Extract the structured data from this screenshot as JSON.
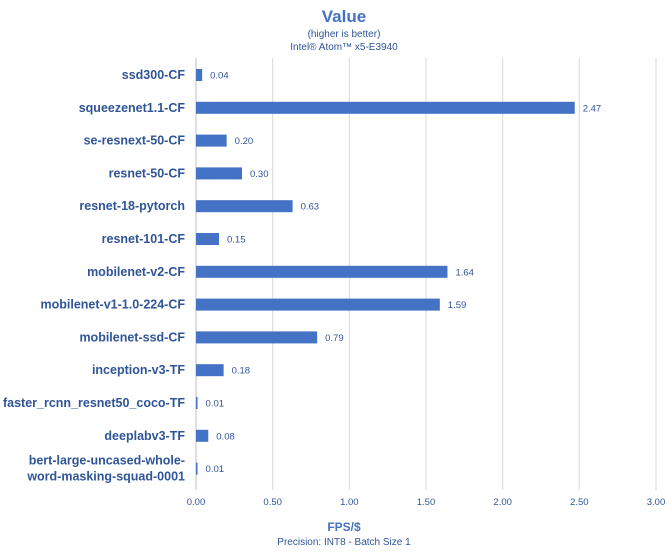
{
  "chart_data": {
    "type": "bar",
    "orientation": "horizontal",
    "title": "Value",
    "subtitle_lines": [
      "(higher is better)",
      "Intel® Atom™ x5-E3940"
    ],
    "xlabel": "FPS/$",
    "xlabel_sub": "Precision: INT8 - Batch Size 1",
    "xlim": [
      0,
      3
    ],
    "xticks": [
      "0.00",
      "0.50",
      "1.00",
      "1.50",
      "2.00",
      "2.50",
      "3.00"
    ],
    "grid": "vertical",
    "categories": [
      [
        "ssd300-CF"
      ],
      [
        "squeezenet1.1-CF"
      ],
      [
        "se-resnext-50-CF"
      ],
      [
        "resnet-50-CF"
      ],
      [
        "resnet-18-pytorch"
      ],
      [
        "resnet-101-CF"
      ],
      [
        "mobilenet-v2-CF"
      ],
      [
        "mobilenet-v1-1.0-224-CF"
      ],
      [
        "mobilenet-ssd-CF"
      ],
      [
        "inception-v3-TF"
      ],
      [
        "faster_rcnn_resnet50_coco-TF"
      ],
      [
        "deeplabv3-TF"
      ],
      [
        "bert-large-uncased-whole-",
        "word-masking-squad-0001"
      ]
    ],
    "values": [
      0.04,
      2.47,
      0.2,
      0.3,
      0.63,
      0.15,
      1.64,
      1.59,
      0.79,
      0.18,
      0.01,
      0.08,
      0.01
    ],
    "value_labels": [
      "0.04",
      "2.47",
      "0.20",
      "0.30",
      "0.63",
      "0.15",
      "1.64",
      "1.59",
      "0.79",
      "0.18",
      "0.01",
      "0.08",
      "0.01"
    ],
    "colors": {
      "bar": "#4472c4",
      "title": "#4472c4",
      "label": "#2f5597",
      "grid": "#d9d9d9",
      "axis": "#bfbfbf"
    }
  }
}
